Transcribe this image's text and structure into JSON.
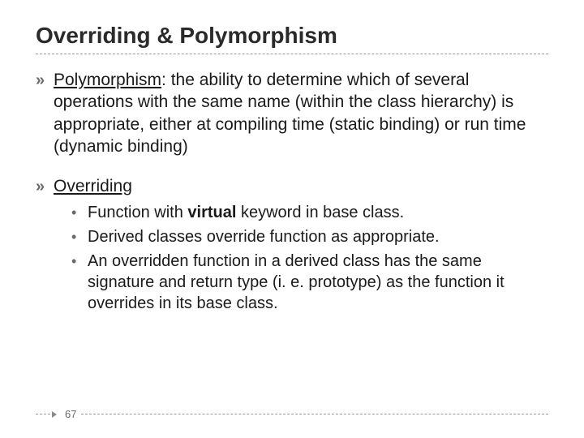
{
  "title": "Overriding & Polymorphism",
  "bullet_glyph": "»",
  "sub_bullet_glyph": "•",
  "bullets": [
    {
      "term": "Polymorphism",
      "rest": ": the ability to determine which of several operations with the same name (within the class hierarchy) is appropriate, either at compiling time (static binding) or run time (dynamic binding)"
    },
    {
      "term": "Overriding",
      "rest": "",
      "sub": [
        {
          "pre": "Function with ",
          "bold": "virtual",
          "post": " keyword in base class."
        },
        {
          "text": "Derived classes override function as appropriate."
        },
        {
          "text": "An overridden function in a derived class has the same signature and return type (i. e. prototype) as the function it overrides in its base class."
        }
      ]
    }
  ],
  "page_number": "67",
  "colors": {
    "title": "#2a2a2a",
    "text": "#1a1a1a",
    "rule": "#9a9a9a",
    "bullet": "#6a6a6a",
    "background": "#ffffff"
  }
}
